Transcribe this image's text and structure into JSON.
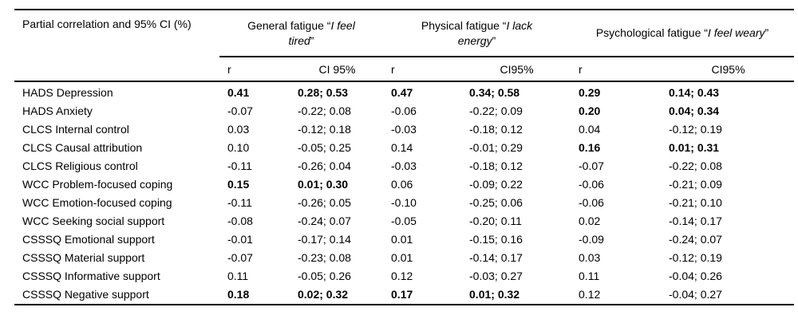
{
  "table": {
    "corner_header": "Partial correlation and 95% CI (%)",
    "groups": [
      {
        "prefix": "General fatigue “",
        "italic": "I feel tired",
        "suffix": "”",
        "r_header": "r",
        "ci_header": "CI 95%"
      },
      {
        "prefix": "Physical fatigue “",
        "italic": "I lack energy",
        "suffix": "”",
        "r_header": "r",
        "ci_header": "CI95%"
      },
      {
        "prefix": "Psychological fatigue “",
        "italic": "I feel weary",
        "suffix": "”",
        "r_header": "r",
        "ci_header": "CI95%"
      }
    ],
    "rows": [
      {
        "label": "HADS Depression",
        "cells": [
          {
            "t": "0.41",
            "b": true
          },
          {
            "t": "0.28; 0.53",
            "b": true
          },
          {
            "t": "0.47",
            "b": true
          },
          {
            "t": "0.34; 0.58",
            "b": true
          },
          {
            "t": "0.29",
            "b": true
          },
          {
            "t": "0.14; 0.43",
            "b": true
          }
        ]
      },
      {
        "label": "HADS Anxiety",
        "cells": [
          {
            "t": "-0.07",
            "b": false
          },
          {
            "t": "-0.22; 0.08",
            "b": false
          },
          {
            "t": "-0.06",
            "b": false
          },
          {
            "t": "-0.22; 0.09",
            "b": false
          },
          {
            "t": "0.20",
            "b": true
          },
          {
            "t": "0.04; 0.34",
            "b": true
          }
        ]
      },
      {
        "label": "CLCS Internal control",
        "cells": [
          {
            "t": "0.03",
            "b": false
          },
          {
            "t": "-0.12; 0.18",
            "b": false
          },
          {
            "t": "-0.03",
            "b": false
          },
          {
            "t": "-0.18; 0.12",
            "b": false
          },
          {
            "t": "0.04",
            "b": false
          },
          {
            "t": "-0.12; 0.19",
            "b": false
          }
        ]
      },
      {
        "label": "CLCS Causal attribution",
        "cells": [
          {
            "t": "0.10",
            "b": false
          },
          {
            "t": "-0.05; 0.25",
            "b": false
          },
          {
            "t": "0.14",
            "b": false
          },
          {
            "t": "-0.01; 0.29",
            "b": false
          },
          {
            "t": "0.16",
            "b": true
          },
          {
            "t": "0.01; 0.31",
            "b": true
          }
        ]
      },
      {
        "label": "CLCS Religious control",
        "cells": [
          {
            "t": "-0.11",
            "b": false
          },
          {
            "t": "-0.26; 0.04",
            "b": false
          },
          {
            "t": "-0.03",
            "b": false
          },
          {
            "t": "-0.18; 0.12",
            "b": false
          },
          {
            "t": "-0.07",
            "b": false
          },
          {
            "t": "-0.22; 0.08",
            "b": false
          }
        ]
      },
      {
        "label": "WCC Problem-focused coping",
        "cells": [
          {
            "t": "0.15",
            "b": true
          },
          {
            "t": "0.01; 0.30",
            "b": true
          },
          {
            "t": "0.06",
            "b": false
          },
          {
            "t": "-0.09; 0.22",
            "b": false
          },
          {
            "t": "-0.06",
            "b": false
          },
          {
            "t": "-0.21; 0.09",
            "b": false
          }
        ]
      },
      {
        "label": "WCC Emotion-focused coping",
        "cells": [
          {
            "t": "-0.11",
            "b": false
          },
          {
            "t": "-0.26; 0.05",
            "b": false
          },
          {
            "t": "-0.10",
            "b": false
          },
          {
            "t": "-0.25; 0.06",
            "b": false
          },
          {
            "t": "-0.06",
            "b": false
          },
          {
            "t": "-0.21; 0.10",
            "b": false
          }
        ]
      },
      {
        "label": "WCC Seeking social support",
        "cells": [
          {
            "t": "-0.08",
            "b": false
          },
          {
            "t": "-0.24; 0.07",
            "b": false
          },
          {
            "t": "-0.05",
            "b": false
          },
          {
            "t": "-0.20; 0.11",
            "b": false
          },
          {
            "t": "0.02",
            "b": false
          },
          {
            "t": "-0.14; 0.17",
            "b": false
          }
        ]
      },
      {
        "label": "CSSSQ Emotional support",
        "cells": [
          {
            "t": "-0.01",
            "b": false
          },
          {
            "t": "-0.17; 0.14",
            "b": false
          },
          {
            "t": "0.01",
            "b": false
          },
          {
            "t": "-0.15; 0.16",
            "b": false
          },
          {
            "t": "-0.09",
            "b": false
          },
          {
            "t": "-0.24; 0.07",
            "b": false
          }
        ]
      },
      {
        "label": "CSSSQ Material support",
        "cells": [
          {
            "t": "-0.07",
            "b": false
          },
          {
            "t": "-0.23; 0.08",
            "b": false
          },
          {
            "t": "0.01",
            "b": false
          },
          {
            "t": "-0.14; 0.17",
            "b": false
          },
          {
            "t": "0.03",
            "b": false
          },
          {
            "t": "-0.12; 0.19",
            "b": false
          }
        ]
      },
      {
        "label": "CSSSQ Informative support",
        "cells": [
          {
            "t": "0.11",
            "b": false
          },
          {
            "t": "-0.05; 0.26",
            "b": false
          },
          {
            "t": "0.12",
            "b": false
          },
          {
            "t": "-0.03; 0.27",
            "b": false
          },
          {
            "t": "0.11",
            "b": false
          },
          {
            "t": "-0.04; 0.26",
            "b": false
          }
        ]
      },
      {
        "label": "CSSSQ Negative support",
        "cells": [
          {
            "t": "0.18",
            "b": true
          },
          {
            "t": "0.02; 0.32",
            "b": true
          },
          {
            "t": "0.17",
            "b": true
          },
          {
            "t": "0.01; 0.32",
            "b": true
          },
          {
            "t": "0.12",
            "b": false
          },
          {
            "t": "-0.04; 0.27",
            "b": false
          }
        ]
      }
    ]
  }
}
